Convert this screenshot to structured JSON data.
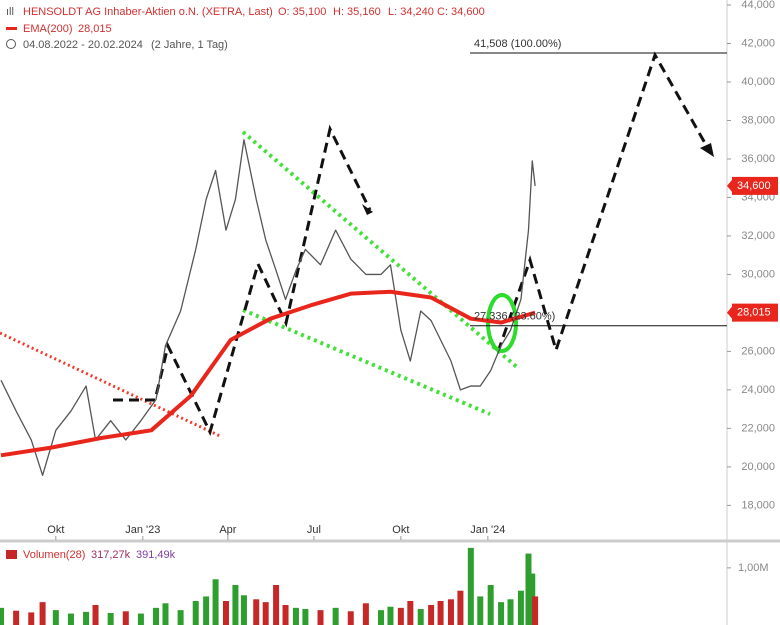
{
  "chart_data": {
    "type": "line",
    "header": {
      "title": "HENSOLDT AG Inhaber-Aktien o.N. (XETRA, Last)",
      "open": "O: 35,100",
      "high": "H: 35,160",
      "low": "L: 34,240",
      "close": "C: 34,600",
      "ema_name": "EMA(200)",
      "ema_value": "28,015",
      "range": "04.08.2022 - 20.02.2024",
      "span": "(2 Jahre, 1 Tag)"
    },
    "xlim": [
      0,
      768
    ],
    "xticks": [
      {
        "value": 58,
        "label": "Okt"
      },
      {
        "value": 150,
        "label": "Jan '23"
      },
      {
        "value": 240,
        "label": "Apr"
      },
      {
        "value": 331,
        "label": "Jul"
      },
      {
        "value": 423,
        "label": "Okt"
      },
      {
        "value": 515,
        "label": "Jan '24"
      }
    ],
    "ylim": [
      16200,
      44000
    ],
    "yticks": [
      {
        "value": 18000,
        "label": "18,000"
      },
      {
        "value": 20000,
        "label": "20,000"
      },
      {
        "value": 22000,
        "label": "22,000"
      },
      {
        "value": 24000,
        "label": "24,000"
      },
      {
        "value": 26000,
        "label": "26,000"
      },
      {
        "value": 28000,
        "label": "28,000"
      },
      {
        "value": 30000,
        "label": "30,000"
      },
      {
        "value": 32000,
        "label": "32,000"
      },
      {
        "value": 34000,
        "label": "34,000"
      },
      {
        "value": 36000,
        "label": "36,000"
      },
      {
        "value": 38000,
        "label": "38,000"
      },
      {
        "value": 40000,
        "label": "40,000"
      },
      {
        "value": 42000,
        "label": "42,000"
      },
      {
        "value": 44000,
        "label": "44,000"
      }
    ],
    "series": [
      {
        "color": "#555555",
        "x": [
          0,
          16,
          32,
          44,
          58,
          74,
          90,
          100,
          116,
          132,
          148,
          164,
          174,
          190,
          206,
          217,
          227,
          238,
          248,
          257,
          270,
          280,
          291,
          301,
          312,
          322,
          338,
          354,
          370,
          386,
          402,
          412,
          423,
          433,
          444,
          455,
          465,
          476,
          486,
          497,
          507,
          518,
          529,
          539,
          550,
          558,
          562,
          565
        ],
        "values": [
          24500,
          22900,
          21400,
          19560,
          21900,
          22900,
          24200,
          21400,
          22400,
          21400,
          22400,
          23500,
          26300,
          28100,
          31300,
          33900,
          35400,
          32300,
          33900,
          37000,
          33900,
          31800,
          30200,
          28700,
          30200,
          31300,
          30500,
          32300,
          30800,
          30000,
          30000,
          30500,
          27100,
          25500,
          28100,
          27600,
          26600,
          25500,
          24000,
          24200,
          24200,
          25000,
          26300,
          27100,
          28700,
          32300,
          35900,
          34600
        ]
      },
      {
        "name": "EMA(200)",
        "color": "#e8261c",
        "x": [
          0,
          53,
          106,
          159,
          201,
          243,
          285,
          328,
          370,
          412,
          455,
          497,
          529,
          565
        ],
        "values": [
          20600,
          21000,
          21500,
          21900,
          23700,
          26600,
          27700,
          28400,
          29000,
          29100,
          28800,
          27700,
          27500,
          28015
        ]
      }
    ],
    "price_tags": [
      {
        "value": 34600,
        "label": "34,600"
      },
      {
        "value": 28015,
        "label": "28,015"
      }
    ],
    "levels": [
      {
        "value": 41508,
        "label": "41,508 (100.00%)"
      },
      {
        "value": 27336,
        "label": "27,336 (23.60%)"
      }
    ],
    "volume": {
      "name": "Volumen(28)",
      "ma1": "317,27k",
      "ma2": "391,49k",
      "ylim": [
        0,
        1400000
      ],
      "yticks": [
        {
          "value": 1000000,
          "label": "1,00M"
        }
      ],
      "up_color": "#2e9e2e",
      "down_color": "#c62828",
      "values": [
        300000,
        250000,
        220000,
        400000,
        260000,
        200000,
        230000,
        350000,
        210000,
        240000,
        200000,
        300000,
        380000,
        260000,
        420000,
        500000,
        800000,
        420000,
        700000,
        520000,
        450000,
        400000,
        700000,
        350000,
        300000,
        280000,
        260000,
        300000,
        240000,
        380000,
        260000,
        320000,
        300000,
        420000,
        280000,
        350000,
        420000,
        450000,
        600000,
        1350000,
        500000,
        700000,
        400000,
        450000,
        600000,
        1250000,
        900000,
        500000
      ]
    }
  }
}
